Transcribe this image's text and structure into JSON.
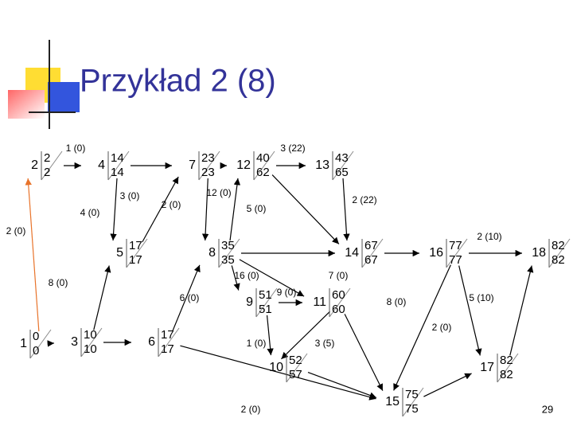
{
  "title": "Przykład 2 (8)",
  "nodes": [
    {
      "id": "1",
      "early": "0",
      "late": "0"
    },
    {
      "id": "2",
      "early": "2",
      "late": "2"
    },
    {
      "id": "3",
      "early": "10",
      "late": "10"
    },
    {
      "id": "4",
      "early": "14",
      "late": "14"
    },
    {
      "id": "5",
      "early": "17",
      "late": "17"
    },
    {
      "id": "6",
      "early": "17",
      "late": "17"
    },
    {
      "id": "7",
      "early": "23",
      "late": "23"
    },
    {
      "id": "8",
      "early": "35",
      "late": "35"
    },
    {
      "id": "9",
      "early": "51",
      "late": "51"
    },
    {
      "id": "10",
      "early": "52",
      "late": "57"
    },
    {
      "id": "11",
      "early": "60",
      "late": "60"
    },
    {
      "id": "12",
      "early": "40",
      "late": "62"
    },
    {
      "id": "13",
      "early": "43",
      "late": "65"
    },
    {
      "id": "14",
      "early": "67",
      "late": "67"
    },
    {
      "id": "15",
      "early": "75",
      "late": "75"
    },
    {
      "id": "16",
      "early": "77",
      "late": "77"
    },
    {
      "id": "17",
      "early": "82",
      "late": "82"
    },
    {
      "id": "18",
      "early": "82",
      "late": "82"
    }
  ],
  "activities": [
    "1 (0)",
    "3 (22)",
    "3 (0)",
    "2 (0)",
    "12 (0)",
    "4 (0)",
    "5 (0)",
    "2 (22)",
    "2 (0)",
    "2 (10)",
    "16 (0)",
    "7 (0)",
    "8 (0)",
    "6 (0)",
    "9 (0)",
    "8 (0)",
    "5 (10)",
    "2 (0)",
    "1 (0)",
    "3 (5)",
    "2 (0)"
  ],
  "page_number": "29"
}
